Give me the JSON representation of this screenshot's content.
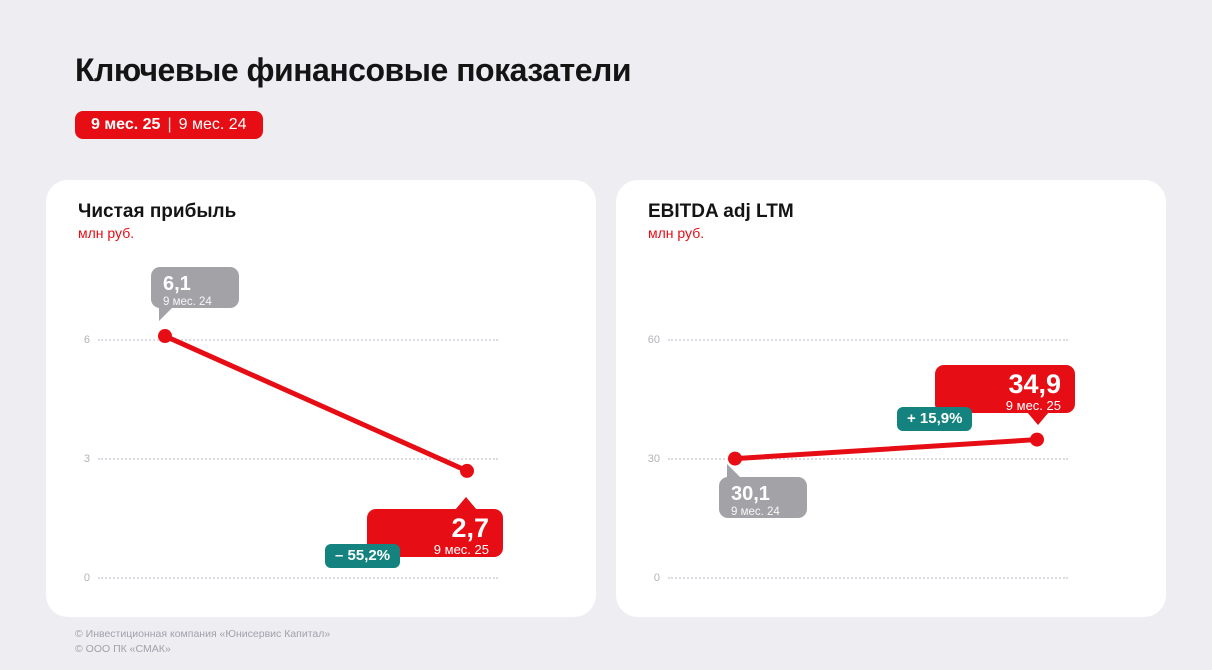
{
  "page": {
    "title": "Ключевые финансовые показатели",
    "period_badge": {
      "current": "9 мес. 25",
      "separator": "|",
      "previous": "9 мес. 24"
    },
    "footer": [
      "© Инвестиционная компания «Юнисервис Капитал»",
      "© ООО ПК «СМАК»"
    ]
  },
  "colors": {
    "accent_red": "#e60d15",
    "teal": "#14827e",
    "gray_bubble": "#a3a2a6",
    "background": "#eeedf2"
  },
  "chart_data": [
    {
      "type": "line",
      "title": "Чистая прибыль",
      "unit": "млн руб.",
      "x": [
        "9 мес. 24",
        "9 мес. 25"
      ],
      "values": [
        6.1,
        2.7
      ],
      "value_labels": [
        "6,1",
        "2,7"
      ],
      "change_label": "– 55,2%",
      "yticks": [
        0,
        3,
        6
      ],
      "ylim": [
        0,
        7.2
      ],
      "grid": true,
      "legend": false
    },
    {
      "type": "line",
      "title": "EBITDA adj LTM",
      "unit": "млн руб.",
      "x": [
        "9 мес. 24",
        "9 мес. 25"
      ],
      "values": [
        30.1,
        34.9
      ],
      "value_labels": [
        "30,1",
        "34,9"
      ],
      "change_label": "+ 15,9%",
      "yticks": [
        0,
        30,
        60
      ],
      "ylim": [
        0,
        72
      ],
      "grid": true,
      "legend": false
    }
  ]
}
